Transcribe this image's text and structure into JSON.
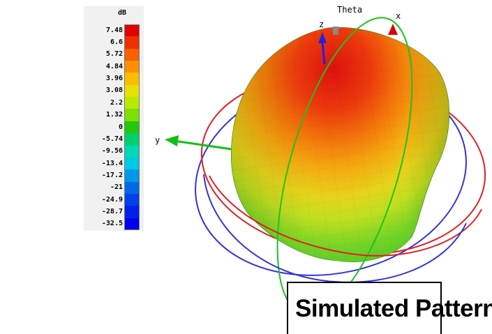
{
  "legend": {
    "unit": "dB",
    "ticks": [
      "7.48",
      "6.6",
      "5.72",
      "4.84",
      "3.96",
      "3.08",
      "2.2",
      "1.32",
      "0",
      "-5.74",
      "-9.56",
      "-13.4",
      "-17.2",
      "-21",
      "-24.9",
      "-28.7",
      "-32.5"
    ],
    "colors": [
      "#e00000",
      "#ee3000",
      "#f86000",
      "#fc9000",
      "#fcbc00",
      "#e8e000",
      "#bce800",
      "#7ce000",
      "#22c80a",
      "#00d070",
      "#00d8b8",
      "#00c8e8",
      "#0098e8",
      "#0068e8",
      "#0040e8",
      "#0020e8",
      "#0000f0"
    ]
  },
  "axes": {
    "theta": "Theta",
    "x": "x",
    "y": "y",
    "z": "z"
  },
  "caption": "Simulated Pattern",
  "colors": {
    "theta_ring": "#1fc21f",
    "phi_ring_red": "#e02020",
    "phi_ring_blue": "#3333dd",
    "y_axis": "#10c010",
    "z_axis": "#2222dd",
    "x_axis": "#dd0000"
  }
}
